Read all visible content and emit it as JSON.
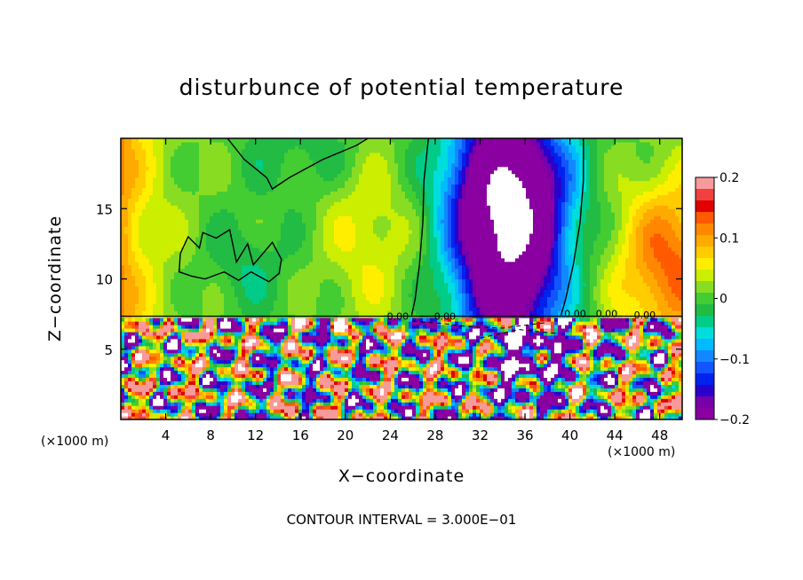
{
  "chart_data": {
    "type": "heatmap",
    "title": "disturbunce of potential temperature",
    "xlabel": "X−coordinate",
    "ylabel": "Z−coordinate",
    "x_unit_left": "(×1000 m)",
    "x_unit_right": "(×1000 m)",
    "x_ticks": [
      "4",
      "8",
      "12",
      "16",
      "20",
      "24",
      "28",
      "32",
      "36",
      "40",
      "44",
      "48"
    ],
    "y_ticks": [
      "5",
      "10",
      "15"
    ],
    "xlim": [
      0,
      50
    ],
    "ylim": [
      0,
      20
    ],
    "colorbar": {
      "ticks": [
        "0.2",
        "0.1",
        "0",
        "−0.1",
        "−0.2"
      ],
      "range": [
        -0.2,
        0.2
      ],
      "colors": [
        "#f79a9a",
        "#f04040",
        "#e00000",
        "#ff5a00",
        "#ff8800",
        "#ffaa00",
        "#ffcc00",
        "#ffee00",
        "#ccee00",
        "#88dd22",
        "#44cc33",
        "#22bb44",
        "#00cc88",
        "#00dddd",
        "#00bbff",
        "#1188ff",
        "#1155ff",
        "#0022ee",
        "#2a00cc",
        "#7700aa",
        "#8a00a0"
      ]
    },
    "contour_labels": [
      "0.00",
      "0.00",
      "0.00",
      "0.00",
      "0.00"
    ],
    "footer": "CONTOUR INTERVAL = 3.000E−01"
  }
}
